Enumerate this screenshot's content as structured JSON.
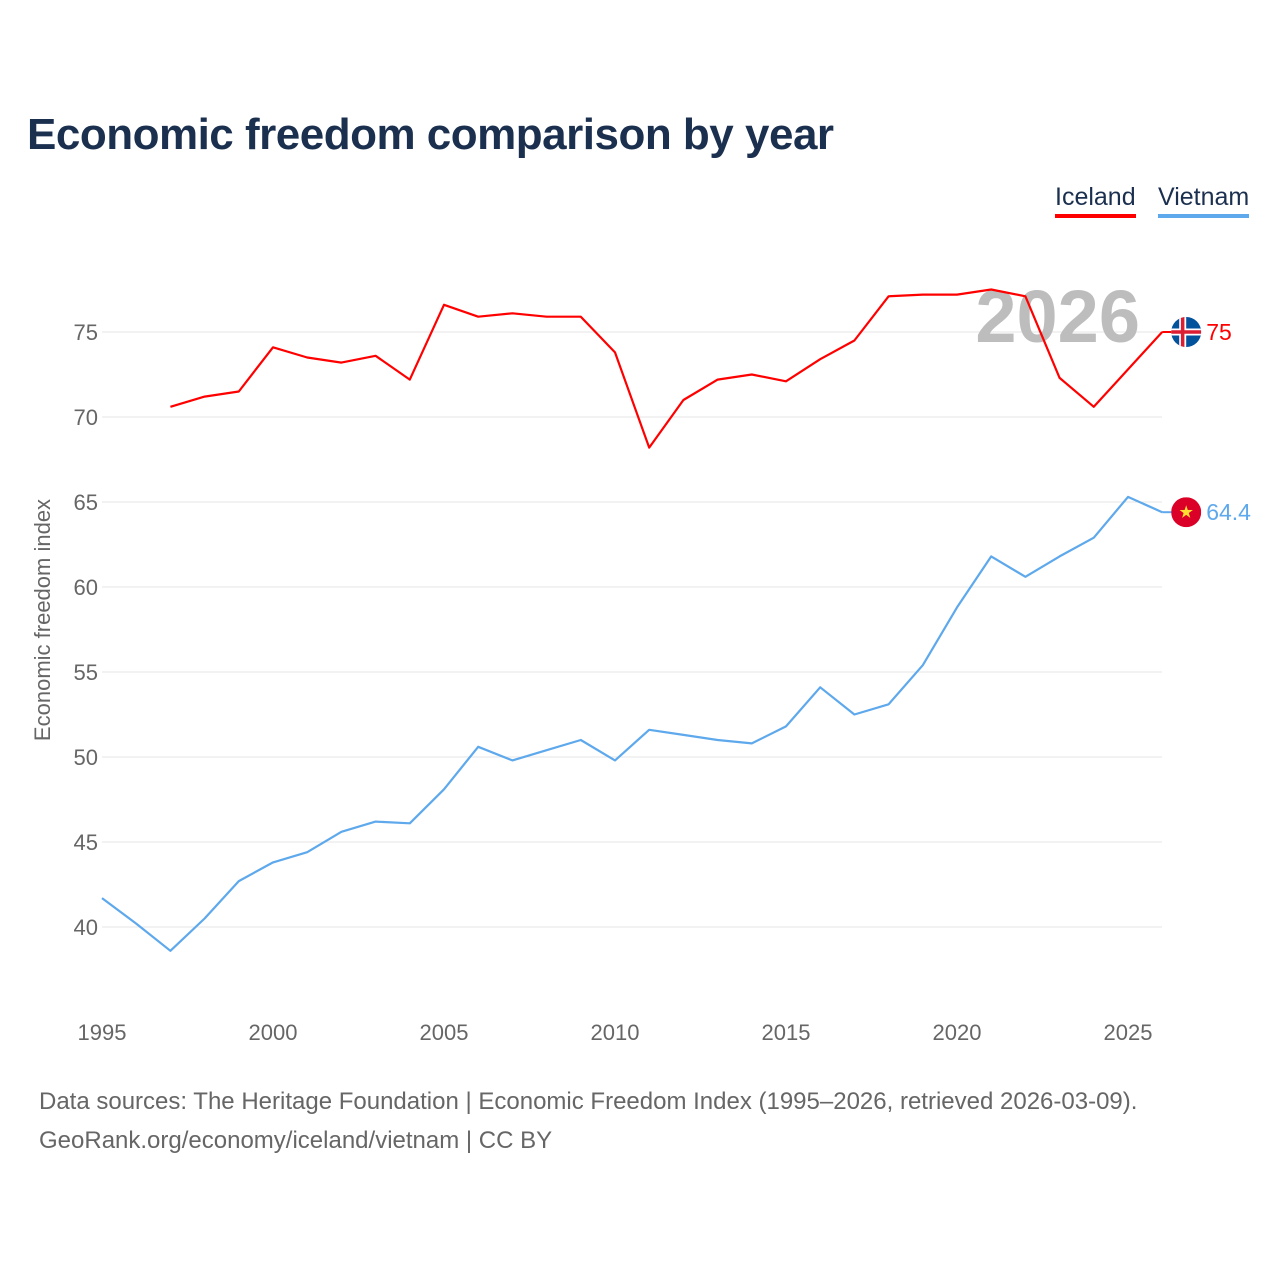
{
  "chart_data": {
    "type": "line",
    "title": "Economic freedom comparison by year",
    "xlabel": "",
    "ylabel": "Economic freedom index",
    "xlim": [
      1995,
      2026
    ],
    "ylim": [
      35,
      80
    ],
    "x_ticks": [
      1995,
      2000,
      2005,
      2010,
      2015,
      2020,
      2025
    ],
    "y_ticks": [
      40,
      45,
      50,
      55,
      60,
      65,
      70,
      75
    ],
    "grid": true,
    "legend_placement": "top-right",
    "watermark_year": "2026",
    "series": [
      {
        "name": "Iceland",
        "color": "#ff0000",
        "end_label": "75",
        "flag": "iceland-flag",
        "x": [
          1997,
          1998,
          1999,
          2000,
          2001,
          2002,
          2003,
          2004,
          2005,
          2006,
          2007,
          2008,
          2009,
          2010,
          2011,
          2012,
          2013,
          2014,
          2015,
          2016,
          2017,
          2018,
          2019,
          2020,
          2021,
          2022,
          2023,
          2024,
          2025,
          2026
        ],
        "values": [
          70.6,
          71.2,
          71.5,
          74.1,
          73.5,
          73.2,
          73.6,
          72.2,
          76.6,
          75.9,
          76.1,
          75.9,
          75.9,
          73.8,
          68.2,
          71.0,
          72.2,
          72.5,
          72.1,
          73.4,
          74.5,
          77.1,
          77.2,
          77.2,
          77.5,
          77.1,
          72.3,
          70.6,
          72.8,
          75.0
        ]
      },
      {
        "name": "Vietnam",
        "color": "#5ea8ec",
        "end_label": "64.4",
        "flag": "vietnam-flag",
        "x": [
          1995,
          1996,
          1997,
          1998,
          1999,
          2000,
          2001,
          2002,
          2003,
          2004,
          2005,
          2006,
          2007,
          2008,
          2009,
          2010,
          2011,
          2012,
          2013,
          2014,
          2015,
          2016,
          2017,
          2018,
          2019,
          2020,
          2021,
          2022,
          2023,
          2024,
          2025,
          2026
        ],
        "values": [
          41.7,
          40.2,
          38.6,
          40.5,
          42.7,
          43.8,
          44.4,
          45.6,
          46.2,
          46.1,
          48.1,
          50.6,
          49.8,
          50.4,
          51.0,
          49.8,
          51.6,
          51.3,
          51.0,
          50.8,
          51.8,
          54.1,
          52.5,
          53.1,
          55.4,
          58.8,
          61.8,
          60.6,
          61.8,
          62.9,
          65.3,
          64.4
        ]
      }
    ]
  },
  "footer": {
    "line1": "Data sources: The Heritage Foundation | Economic Freedom Index (1995–2026, retrieved 2026-03-09).",
    "line2": "GeoRank.org/economy/iceland/vietnam | CC BY"
  }
}
